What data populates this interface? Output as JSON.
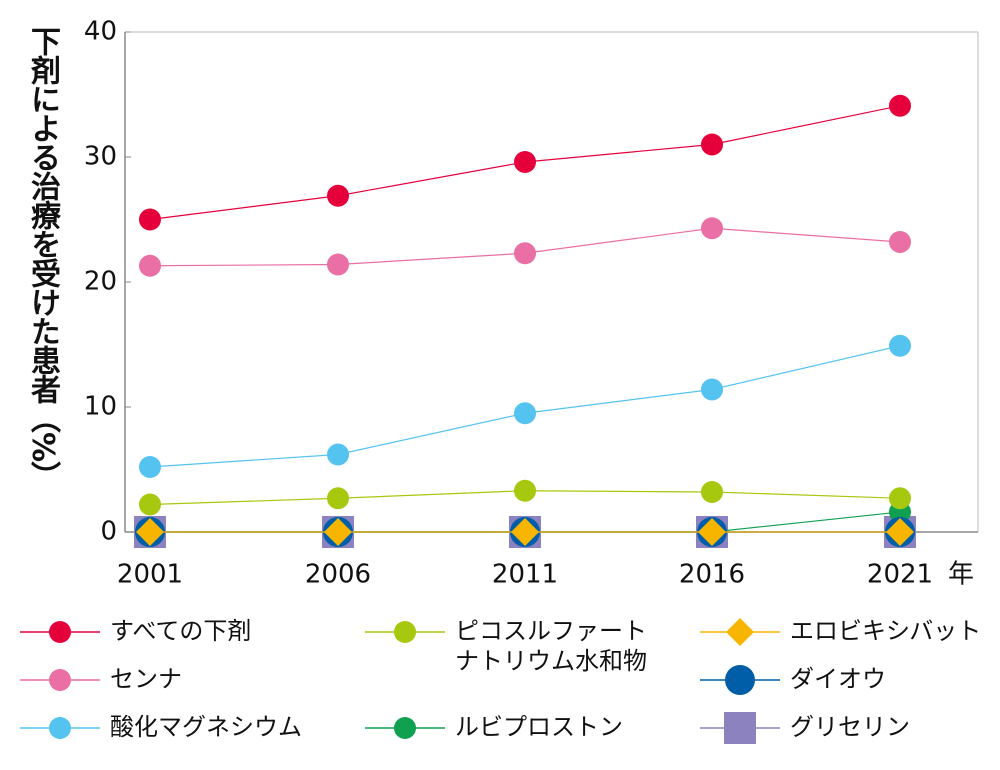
{
  "chart_data": {
    "type": "line",
    "y_label": "下剤による治療を受けた患者（%）",
    "x_unit": "年",
    "categories": [
      "2001",
      "2006",
      "2011",
      "2016",
      "2021"
    ],
    "ylim": [
      0,
      40
    ],
    "yticks": [
      0,
      10,
      20,
      30,
      40
    ],
    "grid": false,
    "series": [
      {
        "name": "すべての下剤",
        "color": "#e5003c",
        "marker": "circle",
        "values": [
          25.0,
          26.9,
          29.6,
          31.0,
          34.1
        ]
      },
      {
        "name": "センナ",
        "color": "#ea6fa4",
        "marker": "circle",
        "values": [
          21.3,
          21.4,
          22.3,
          24.3,
          23.2
        ]
      },
      {
        "name": "酸化マグネシウム",
        "color": "#55c3f0",
        "marker": "circle",
        "values": [
          5.2,
          6.2,
          9.5,
          11.4,
          14.9
        ]
      },
      {
        "name": "ピコスルファートナトリウム水和物",
        "color": "#a6c80e",
        "marker": "circle",
        "values": [
          2.2,
          2.7,
          3.3,
          3.2,
          2.7
        ]
      },
      {
        "name": "ルビプロストン",
        "color": "#10a050",
        "marker": "circle",
        "values": [
          0,
          0,
          0,
          0,
          1.6
        ]
      },
      {
        "name": "エロビキシバット",
        "color": "#f7b500",
        "marker": "diamond",
        "values": [
          0,
          0,
          0,
          0,
          0
        ]
      },
      {
        "name": "ダイオウ",
        "color": "#005ea8",
        "marker": "circle",
        "values": [
          0,
          0,
          0,
          0,
          0
        ]
      },
      {
        "name": "グリセリン",
        "color": "#8b82bf",
        "marker": "square",
        "values": [
          0,
          0,
          0,
          0,
          0
        ]
      }
    ]
  }
}
